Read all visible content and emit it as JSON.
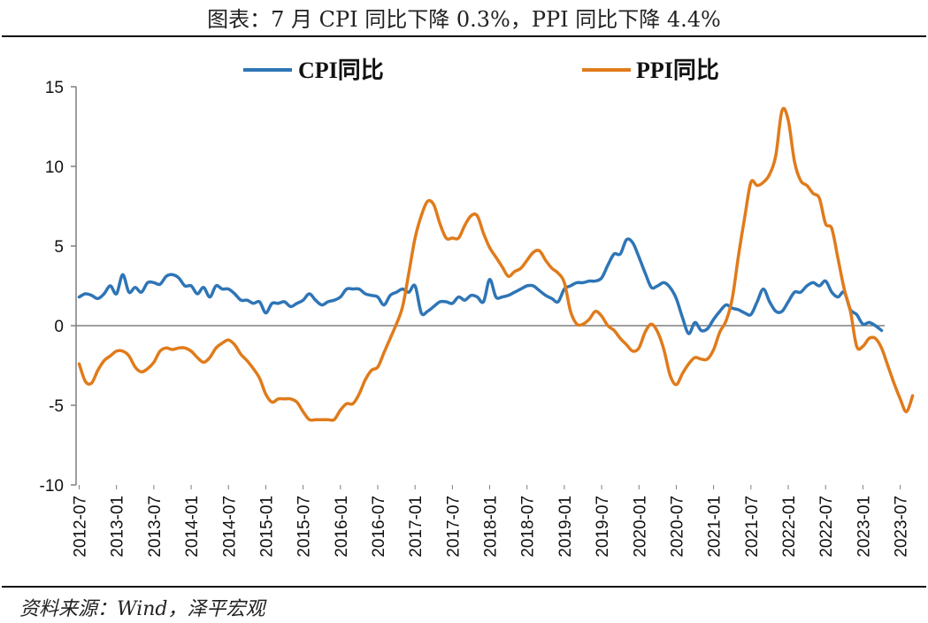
{
  "title": "图表：7 月 CPI 同比下降 0.3%，PPI 同比下降 4.4%",
  "source": "资料来源：Wind，泽平宏观",
  "colors": {
    "cpi": "#2E75B6",
    "ppi": "#E07B1B",
    "axis": "#7f7f7f"
  },
  "chart_data": {
    "type": "line",
    "title": "图表：7 月 CPI 同比下降 0.3%，PPI 同比下降 4.4%",
    "xlabel": "",
    "ylabel": "",
    "ylim": [
      -10,
      15
    ],
    "yticks": [
      "15",
      "10",
      "5",
      "0",
      "-5",
      "-10"
    ],
    "grid": false,
    "legend": "top-center",
    "xtick_labels": [
      "2012-07",
      "2013-01",
      "2013-07",
      "2014-01",
      "2014-07",
      "2015-01",
      "2015-07",
      "2016-01",
      "2016-07",
      "2017-01",
      "2017-07",
      "2018-01",
      "2018-07",
      "2019-01",
      "2019-07",
      "2020-01",
      "2020-07",
      "2021-01",
      "2021-07",
      "2022-01",
      "2022-07",
      "2023-01",
      "2023-07"
    ],
    "series": [
      {
        "name": "CPI同比",
        "start": "2012-07",
        "values": [
          1.8,
          2.0,
          1.9,
          1.7,
          2.0,
          2.5,
          2.0,
          3.2,
          2.1,
          2.4,
          2.1,
          2.7,
          2.7,
          2.6,
          3.1,
          3.2,
          3.0,
          2.5,
          2.5,
          2.0,
          2.4,
          1.8,
          2.5,
          2.3,
          2.3,
          2.0,
          1.6,
          1.6,
          1.4,
          1.5,
          0.8,
          1.4,
          1.4,
          1.5,
          1.2,
          1.4,
          1.6,
          2.0,
          1.6,
          1.3,
          1.5,
          1.6,
          1.8,
          2.3,
          2.3,
          2.3,
          2.0,
          1.9,
          1.8,
          1.3,
          1.9,
          2.1,
          2.3,
          2.1,
          2.5,
          0.8,
          0.9,
          1.2,
          1.5,
          1.5,
          1.4,
          1.8,
          1.6,
          1.9,
          1.8,
          1.5,
          2.9,
          1.8,
          1.8,
          1.9,
          2.1,
          2.3,
          2.5,
          2.5,
          2.2,
          1.9,
          1.7,
          1.5,
          2.3,
          2.5,
          2.7,
          2.7,
          2.8,
          2.8,
          3.0,
          3.8,
          4.5,
          4.5,
          5.4,
          5.2,
          4.3,
          3.3,
          2.4,
          2.5,
          2.7,
          2.4,
          1.7,
          0.5,
          -0.5,
          0.2,
          -0.3,
          -0.2,
          0.4,
          0.9,
          1.3,
          1.1,
          1.0,
          0.8,
          0.7,
          1.5,
          2.3,
          1.5,
          0.9,
          0.9,
          1.5,
          2.1,
          2.1,
          2.5,
          2.7,
          2.5,
          2.8,
          2.1,
          1.8,
          2.1,
          1.0,
          0.7,
          0.1,
          0.2,
          0.0,
          -0.3
        ],
        "color": "#2E75B6"
      },
      {
        "name": "PPI同比",
        "start": "2012-07",
        "values": [
          -2.4,
          -3.5,
          -3.6,
          -2.8,
          -2.2,
          -1.9,
          -1.6,
          -1.6,
          -1.9,
          -2.6,
          -2.9,
          -2.7,
          -2.3,
          -1.6,
          -1.4,
          -1.5,
          -1.4,
          -1.4,
          -1.6,
          -2.0,
          -2.3,
          -2.0,
          -1.4,
          -1.1,
          -0.9,
          -1.2,
          -1.8,
          -2.2,
          -2.7,
          -3.3,
          -4.3,
          -4.8,
          -4.6,
          -4.6,
          -4.6,
          -4.8,
          -5.4,
          -5.9,
          -5.9,
          -5.9,
          -5.9,
          -5.9,
          -5.3,
          -4.9,
          -4.9,
          -4.3,
          -3.4,
          -2.8,
          -2.6,
          -1.7,
          -0.8,
          0.1,
          1.2,
          3.3,
          5.5,
          6.9,
          7.8,
          7.6,
          6.4,
          5.5,
          5.5,
          5.5,
          6.3,
          6.9,
          6.9,
          5.8,
          4.9,
          4.3,
          3.7,
          3.1,
          3.4,
          3.6,
          4.1,
          4.6,
          4.7,
          4.1,
          3.6,
          3.3,
          2.7,
          0.9,
          0.1,
          0.1,
          0.4,
          0.9,
          0.6,
          0.0,
          -0.3,
          -0.8,
          -1.2,
          -1.6,
          -1.4,
          -0.4,
          0.1,
          -0.4,
          -1.5,
          -3.1,
          -3.7,
          -3.0,
          -2.4,
          -2.0,
          -2.1,
          -2.1,
          -1.5,
          -0.4,
          0.3,
          1.7,
          4.4,
          6.8,
          9.0,
          8.8,
          9.0,
          9.5,
          10.7,
          13.5,
          12.9,
          10.3,
          9.1,
          8.8,
          8.3,
          8.0,
          6.4,
          6.1,
          4.2,
          2.3,
          0.9,
          -1.3,
          -1.3,
          -0.8,
          -0.8,
          -1.4,
          -2.5,
          -3.6,
          -4.6,
          -5.4,
          -4.4
        ],
        "color": "#E07B1B"
      }
    ]
  }
}
